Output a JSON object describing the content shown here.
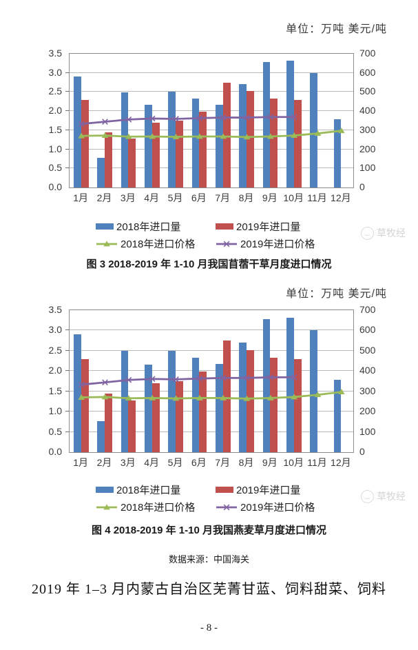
{
  "page": {
    "units_label": "单位：万吨 美元/吨",
    "source": "数据来源：中国海关",
    "heading": "2019 年 1–3 月内蒙古自治区芜菁甘蓝、饲料甜菜、饲料",
    "page_number": "- 8 -",
    "watermark_text": "草牧经",
    "watermark_color": "#d4d4d4"
  },
  "legend": {
    "items": [
      {
        "label": "2018年进口量",
        "type": "bar",
        "color": "#4F81BD"
      },
      {
        "label": "2019年进口量",
        "type": "bar",
        "color": "#C0504D"
      },
      {
        "label": "2018年进口价格",
        "type": "line-triangle",
        "color": "#9BBB59"
      },
      {
        "label": "2019年进口价格",
        "type": "line-x",
        "color": "#8064A2"
      }
    ]
  },
  "chart_data": [
    {
      "type": "bar+line",
      "title": "图 3  2018-2019 年 1-10 月我国苜蓿干草月度进口情况",
      "categories": [
        "1月",
        "2月",
        "3月",
        "4月",
        "5月",
        "6月",
        "7月",
        "8月",
        "9月",
        "10月",
        "11月",
        "12月"
      ],
      "left_axis": {
        "label": "万吨",
        "min": 0,
        "max": 3.5,
        "step": 0.5,
        "ticks": [
          "0.0",
          "0.5",
          "1.0",
          "1.5",
          "2.0",
          "2.5",
          "3.0",
          "3.5"
        ]
      },
      "right_axis": {
        "label": "美元/吨",
        "min": 0,
        "max": 700,
        "step": 100,
        "ticks": [
          "0",
          "100",
          "200",
          "300",
          "400",
          "500",
          "600",
          "700"
        ]
      },
      "series": [
        {
          "name": "2018年进口量",
          "type": "bar",
          "axis": "left",
          "color": "#4F81BD",
          "marker": "none",
          "values": [
            2.9,
            0.77,
            2.49,
            2.16,
            2.5,
            2.33,
            2.17,
            2.7,
            3.28,
            3.32,
            3.0,
            1.78
          ]
        },
        {
          "name": "2019年进口量",
          "type": "bar",
          "axis": "left",
          "color": "#C0504D",
          "marker": "none",
          "values": [
            2.3,
            1.44,
            1.28,
            1.7,
            1.75,
            1.99,
            2.75,
            2.52,
            2.33,
            2.29,
            null,
            null
          ]
        },
        {
          "name": "2018年进口价格",
          "type": "line",
          "axis": "right",
          "color": "#9BBB59",
          "marker": "triangle",
          "values": [
            270,
            272,
            266,
            267,
            265,
            267,
            267,
            264,
            267,
            272,
            283,
            297
          ]
        },
        {
          "name": "2019年进口价格",
          "type": "line",
          "axis": "right",
          "color": "#8064A2",
          "marker": "x",
          "values": [
            333,
            344,
            356,
            361,
            359,
            363,
            366,
            366,
            369,
            369,
            null,
            null
          ]
        }
      ],
      "grid": "horizontal",
      "legend_position": "bottom"
    },
    {
      "type": "bar+line",
      "title": "图 4  2018-2019 年 1-10 月我国燕麦草月度进口情况",
      "categories": [
        "1月",
        "2月",
        "3月",
        "4月",
        "5月",
        "6月",
        "7月",
        "8月",
        "9月",
        "10月",
        "11月",
        "12月"
      ],
      "left_axis": {
        "label": "万吨",
        "min": 0,
        "max": 3.5,
        "step": 0.5,
        "ticks": [
          "0.0",
          "0.5",
          "1.0",
          "1.5",
          "2.0",
          "2.5",
          "3.0",
          "3.5"
        ]
      },
      "right_axis": {
        "label": "美元/吨",
        "min": 0,
        "max": 700,
        "step": 100,
        "ticks": [
          "0",
          "100",
          "200",
          "300",
          "400",
          "500",
          "600",
          "700"
        ]
      },
      "series": [
        {
          "name": "2018年进口量",
          "type": "bar",
          "axis": "left",
          "color": "#4F81BD",
          "marker": "none",
          "values": [
            2.9,
            0.77,
            2.49,
            2.16,
            2.5,
            2.33,
            2.17,
            2.7,
            3.28,
            3.32,
            3.0,
            1.78
          ]
        },
        {
          "name": "2019年进口量",
          "type": "bar",
          "axis": "left",
          "color": "#C0504D",
          "marker": "none",
          "values": [
            2.3,
            1.44,
            1.28,
            1.7,
            1.75,
            1.99,
            2.75,
            2.52,
            2.33,
            2.29,
            null,
            null
          ]
        },
        {
          "name": "2018年进口价格",
          "type": "line",
          "axis": "right",
          "color": "#9BBB59",
          "marker": "triangle",
          "values": [
            270,
            272,
            266,
            267,
            265,
            267,
            267,
            264,
            267,
            272,
            283,
            297
          ]
        },
        {
          "name": "2019年进口价格",
          "type": "line",
          "axis": "right",
          "color": "#8064A2",
          "marker": "x",
          "values": [
            333,
            344,
            356,
            361,
            359,
            363,
            366,
            366,
            369,
            369,
            null,
            null
          ]
        }
      ],
      "grid": "horizontal",
      "legend_position": "bottom"
    }
  ]
}
